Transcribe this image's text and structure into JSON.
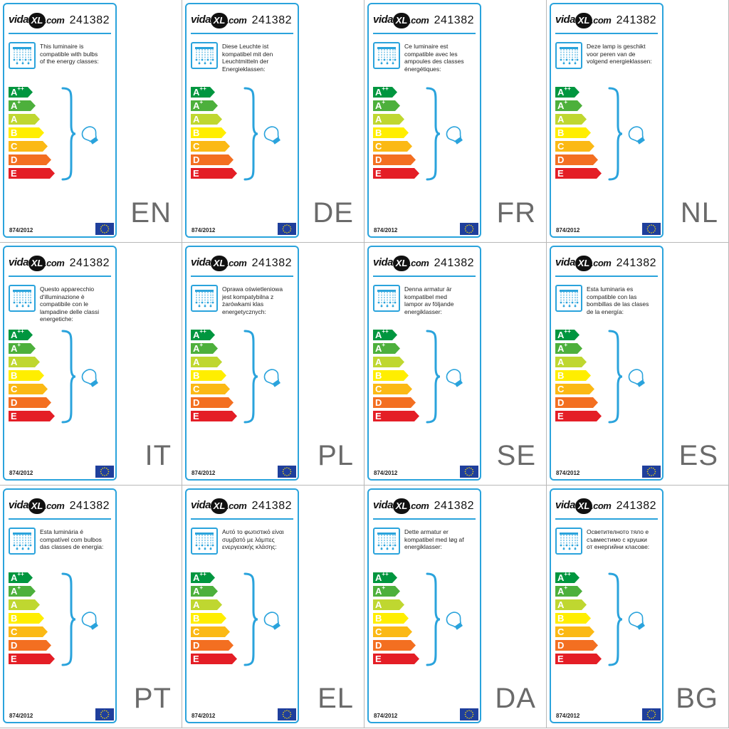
{
  "brand": {
    "logo_text": "vidaXL.com",
    "logo_parts": [
      "vida",
      "XL",
      ".com"
    ]
  },
  "product_code": "241382",
  "regulation": "874/2012",
  "colors": {
    "border": "#2aa3dc",
    "classes": {
      "A++": "#00963f",
      "A+": "#4db03c",
      "A": "#bfd730",
      "B": "#ffee00",
      "C": "#fbb915",
      "D": "#f36f21",
      "E": "#e41e26"
    }
  },
  "icons": [
    "vidaxl-logo",
    "chandelier-icon",
    "curly-brace",
    "lamp-bulb-icon",
    "eu-flag-icon"
  ],
  "energy_classes": [
    {
      "main": "A",
      "sup": "++"
    },
    {
      "main": "A",
      "sup": "+"
    },
    {
      "main": "A",
      "sup": ""
    },
    {
      "main": "B",
      "sup": ""
    },
    {
      "main": "C",
      "sup": ""
    },
    {
      "main": "D",
      "sup": ""
    },
    {
      "main": "E",
      "sup": ""
    }
  ],
  "labels": [
    {
      "lang": "EN",
      "lines": [
        "This luminaire is",
        "compatible with bulbs",
        "of the energy classes:"
      ]
    },
    {
      "lang": "DE",
      "lines": [
        "Diese Leuchte ist",
        "kompatibel mit den",
        "Leuchtmitteln der",
        "Energieklassen:"
      ]
    },
    {
      "lang": "FR",
      "lines": [
        "Ce luminaire est",
        "compatible avec les",
        "ampoules des classes",
        "énergétiques:"
      ]
    },
    {
      "lang": "NL",
      "lines": [
        "Deze lamp is geschikt",
        "voor peren van de",
        "volgend energieklassen:"
      ]
    },
    {
      "lang": "IT",
      "lines": [
        "Questo apparecchio",
        "d'illuminazione è",
        "compatibile con le",
        "lampadine delle classi",
        "energetiche:"
      ]
    },
    {
      "lang": "PL",
      "lines": [
        "Oprawa oświetleniowa",
        "jest kompatybilna z",
        "żarówkami klas",
        "energetycznych:"
      ]
    },
    {
      "lang": "SE",
      "lines": [
        "Denna armatur är",
        "kompatibel med",
        "lampor av följande",
        "energiklasser:"
      ]
    },
    {
      "lang": "ES",
      "lines": [
        "Esta luminaria es",
        "compatible con las",
        "bombillas de las clases",
        "de la energía:"
      ]
    },
    {
      "lang": "PT",
      "lines": [
        "Esta luminária é",
        "compatível com bulbos",
        "das classes de energia:"
      ]
    },
    {
      "lang": "EL",
      "lines": [
        "Αυτό το φωτιστικό είναι",
        "συμβατό με λάμπες",
        "ενεργειακής κλάσης:"
      ]
    },
    {
      "lang": "DA",
      "lines": [
        "Dette armatur er",
        "kompatibel med løg af",
        "energiklasser:"
      ]
    },
    {
      "lang": "BG",
      "lines": [
        "Осветителното тяло е",
        "съвместимо с крушки",
        "от енергийни класове:"
      ]
    }
  ]
}
